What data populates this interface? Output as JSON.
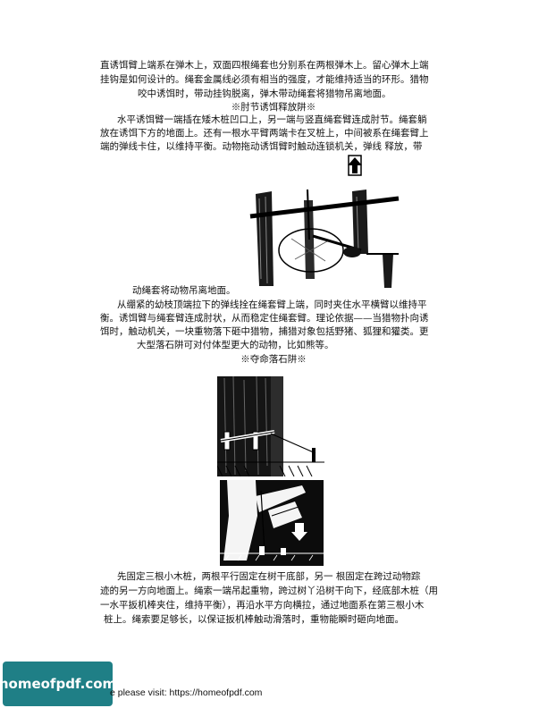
{
  "paragraph1": {
    "line1": "直诱饵臂上端系在弹木上，双面四根绳套也分别系在两根弹木上。留心弹木上端",
    "line2": "挂钩是如何设计的。绳套金属线必须有相当的强度，才能维持适当的环形。猎物",
    "line3": "咬中诱饵时，带动挂钩脱离，弹木带动绳套将猎物吊离地面。"
  },
  "heading_trap1": "※肘节诱饵释放阱※",
  "paragraph2": {
    "line1": "水平诱饵臂一端插在矮木桩凹口上，另一端与竖直绳套臂连成肘节。绳套躺",
    "line2": "放在诱饵下方的地面上。还有一根水平臂两端卡在叉桩上，中间被系在绳套臂上",
    "line3": "端的弹线卡住，以维持平衡。动物拖动诱饵臂时触动连锁机关，弹线 释放，带",
    "line4": "动绳套将动物吊离地面。"
  },
  "paragraph3": {
    "line1": "从绷紧的幼枝顶端拉下的弹线拴在绳套臂上端，同时夹住水平横臂以维持平",
    "line2": "衡。诱饵臂与绳套臂连成肘状，从而稳定住绳套臂。理论依据——当猎物扑向诱",
    "line3": "饵时，触动机关，一块重物落下砸中猎物，捕猎对象包括野猪、狐狸和獾类。更",
    "line4": "大型落石阱可对付体型更大的动物，比如熊等。"
  },
  "heading_trap2": "※夺命落石阱※",
  "paragraph4": {
    "line1": "先固定三根小木桩，两根平行固定在树干底部，另一 根固定在跨过动物踪",
    "line2": "迹的另一方向地面上。绳索一端吊起重物，跨过树丫沿树干向下，经底部木桩（用",
    "line3": "一水平扳机棒夹住，维持平衡），再沿水平方向横拉，通过地面系在第三根小木",
    "line4": "桩上。绳索要足够长，以保证扳机棒触动滑落时，重物能瞬时砸向地面。"
  },
  "logo_text": "homeofpdf.com",
  "footer_text": "e please visit: https://homeofpdf.com",
  "colors": {
    "logo_bg": "#1f7f86"
  }
}
